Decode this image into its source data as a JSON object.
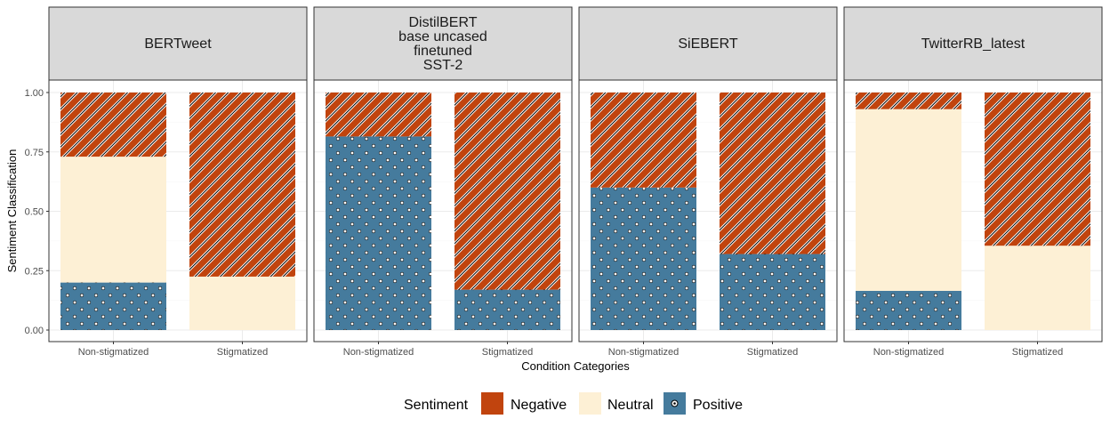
{
  "chart_data": {
    "type": "bar",
    "stacked": true,
    "facets": [
      {
        "title": [
          "BERTweet"
        ],
        "categories": [
          "Non-stigmatized",
          "Stigmatized"
        ],
        "series": [
          {
            "name": "Positive",
            "values": [
              0.2,
              0.0
            ]
          },
          {
            "name": "Neutral",
            "values": [
              0.53,
              0.225
            ]
          },
          {
            "name": "Negative",
            "values": [
              0.27,
              0.775
            ]
          }
        ]
      },
      {
        "title": [
          "DistilBERT",
          "base uncased",
          "finetuned",
          "SST-2"
        ],
        "categories": [
          "Non-stigmatized",
          "Stigmatized"
        ],
        "series": [
          {
            "name": "Positive",
            "values": [
              0.815,
              0.17
            ]
          },
          {
            "name": "Neutral",
            "values": [
              0.0,
              0.0
            ]
          },
          {
            "name": "Negative",
            "values": [
              0.185,
              0.83
            ]
          }
        ]
      },
      {
        "title": [
          "SiEBERT"
        ],
        "categories": [
          "Non-stigmatized",
          "Stigmatized"
        ],
        "series": [
          {
            "name": "Positive",
            "values": [
              0.6,
              0.32
            ]
          },
          {
            "name": "Neutral",
            "values": [
              0.0,
              0.0
            ]
          },
          {
            "name": "Negative",
            "values": [
              0.4,
              0.68
            ]
          }
        ]
      },
      {
        "title": [
          "TwitterRB_latest"
        ],
        "categories": [
          "Non-stigmatized",
          "Stigmatized"
        ],
        "series": [
          {
            "name": "Positive",
            "values": [
              0.165,
              0.0
            ]
          },
          {
            "name": "Neutral",
            "values": [
              0.765,
              0.355
            ]
          },
          {
            "name": "Negative",
            "values": [
              0.07,
              0.645
            ]
          }
        ]
      }
    ],
    "xlabel": "Condition Categories",
    "ylabel": "Sentiment Classification",
    "ylim": [
      0,
      1
    ],
    "yticks": [
      "0.00",
      "0.25",
      "0.50",
      "0.75",
      "1.00"
    ],
    "legend": {
      "title": "Sentiment",
      "position": "bottom",
      "entries": [
        "Negative",
        "Neutral",
        "Positive"
      ]
    },
    "colors": {
      "Negative": "#c1440e",
      "Neutral": "#fdf0d5",
      "Positive": "#457b9d"
    }
  }
}
